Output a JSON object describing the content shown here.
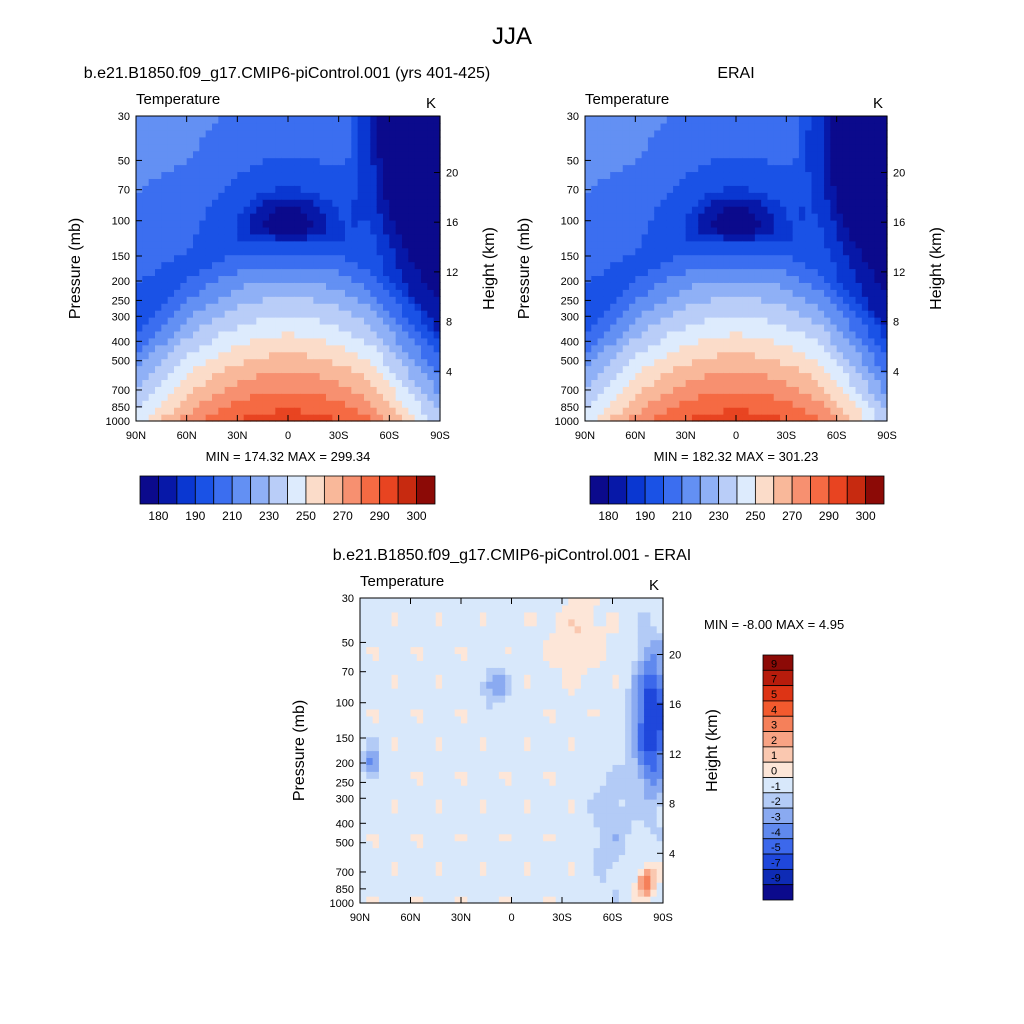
{
  "page": {
    "season": "JJA"
  },
  "chart_data": [
    {
      "type": "heatmap",
      "id": "model",
      "title": "b.e21.B1850.f09_g17.CMIP6-piControl.001 (yrs 401-425)",
      "left_label": "Temperature",
      "units": "K",
      "xlabel": "",
      "ylabel": "Pressure (mb)",
      "y2label": "Height (km)",
      "x_ticks": [
        "90N",
        "60N",
        "30N",
        "0",
        "30S",
        "60S",
        "90S"
      ],
      "y_ticks": [
        30,
        50,
        70,
        100,
        150,
        200,
        250,
        300,
        400,
        500,
        700,
        850,
        1000
      ],
      "y2_ticks": [
        4,
        8,
        12,
        16,
        20
      ],
      "y_log": true,
      "ylim": [
        1000,
        30
      ],
      "xlim": [
        90,
        -90
      ],
      "stats": "MIN = 174.32  MAX = 299.34",
      "min": 174.32,
      "max": 299.34,
      "colorbar": {
        "orientation": "horizontal",
        "levels": [
          180,
          185,
          190,
          200,
          210,
          220,
          230,
          240,
          250,
          260,
          270,
          280,
          290,
          295,
          300
        ],
        "labels": [
          "180",
          "190",
          "210",
          "230",
          "250",
          "270",
          "290",
          "300"
        ],
        "colors": [
          "#0b0a8c",
          "#0718a8",
          "#0a37d1",
          "#1a52e6",
          "#3b6ef0",
          "#6390f3",
          "#8fb0f6",
          "#b9cdf8",
          "#ddebfd",
          "#fbdcc9",
          "#f9b89a",
          "#f79070",
          "#f56a43",
          "#e84421",
          "#c72a10",
          "#8c0a06"
        ]
      }
    },
    {
      "type": "heatmap",
      "id": "obs",
      "title": "ERAI",
      "left_label": "Temperature",
      "units": "K",
      "xlabel": "",
      "ylabel": "Pressure (mb)",
      "y2label": "Height (km)",
      "x_ticks": [
        "90N",
        "60N",
        "30N",
        "0",
        "30S",
        "60S",
        "90S"
      ],
      "y_ticks": [
        30,
        50,
        70,
        100,
        150,
        200,
        250,
        300,
        400,
        500,
        700,
        850,
        1000
      ],
      "y2_ticks": [
        4,
        8,
        12,
        16,
        20
      ],
      "y_log": true,
      "ylim": [
        1000,
        30
      ],
      "xlim": [
        90,
        -90
      ],
      "stats": "MIN = 182.32  MAX = 301.23",
      "min": 182.32,
      "max": 301.23,
      "colorbar": {
        "orientation": "horizontal",
        "levels": [
          180,
          185,
          190,
          200,
          210,
          220,
          230,
          240,
          250,
          260,
          270,
          280,
          290,
          295,
          300
        ],
        "labels": [
          "180",
          "190",
          "210",
          "230",
          "250",
          "270",
          "290",
          "300"
        ],
        "colors": [
          "#0b0a8c",
          "#0718a8",
          "#0a37d1",
          "#1a52e6",
          "#3b6ef0",
          "#6390f3",
          "#8fb0f6",
          "#b9cdf8",
          "#ddebfd",
          "#fbdcc9",
          "#f9b89a",
          "#f79070",
          "#f56a43",
          "#e84421",
          "#c72a10",
          "#8c0a06"
        ]
      }
    },
    {
      "type": "heatmap",
      "id": "diff",
      "title": "b.e21.B1850.f09_g17.CMIP6-piControl.001 - ERAI",
      "left_label": "Temperature",
      "units": "K",
      "xlabel": "",
      "ylabel": "Pressure (mb)",
      "y2label": "Height (km)",
      "x_ticks": [
        "90N",
        "60N",
        "30N",
        "0",
        "30S",
        "60S",
        "90S"
      ],
      "y_ticks": [
        30,
        50,
        70,
        100,
        150,
        200,
        250,
        300,
        400,
        500,
        700,
        850,
        1000
      ],
      "y2_ticks": [
        4,
        8,
        12,
        16,
        20
      ],
      "y_log": true,
      "ylim": [
        1000,
        30
      ],
      "xlim": [
        90,
        -90
      ],
      "stats": "MIN =  -8.00  MAX =   4.95",
      "min": -8.0,
      "max": 4.95,
      "colorbar": {
        "orientation": "vertical",
        "labels": [
          "9",
          "7",
          "5",
          "4",
          "3",
          "2",
          "1",
          "0",
          "-1",
          "-2",
          "-3",
          "-4",
          "-5",
          "-7",
          "-9"
        ],
        "colors": [
          "#8c0a06",
          "#b71c0c",
          "#dd3415",
          "#f25a2e",
          "#f5805a",
          "#f8a384",
          "#fac8b0",
          "#fde6d8",
          "#d8e8fb",
          "#b3cbf6",
          "#8aaaf1",
          "#6089ee",
          "#3c68eb",
          "#1f47db",
          "#0e2bb5",
          "#0b0a8c"
        ]
      }
    }
  ]
}
